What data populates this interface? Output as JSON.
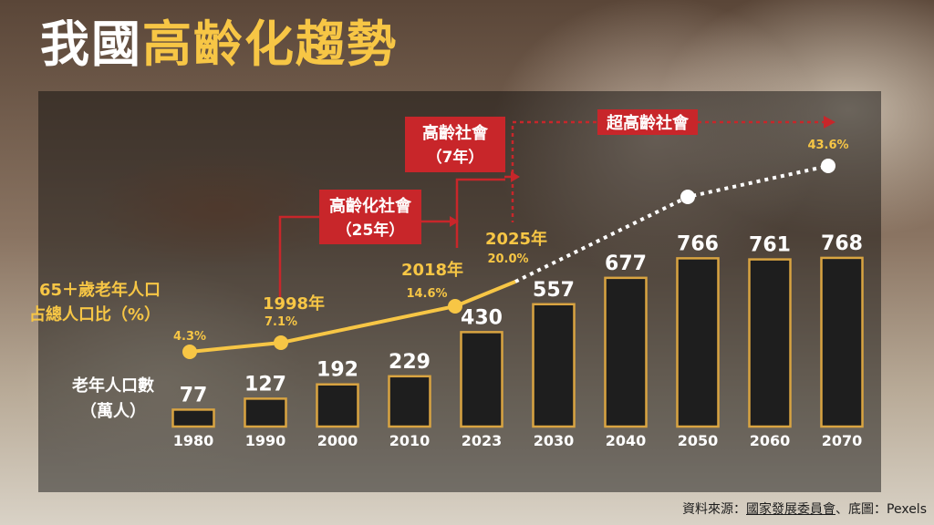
{
  "header": {
    "title_white": "我國",
    "title_yellow": "高齡化趨勢"
  },
  "stages": [
    {
      "line1": "高齡化社會",
      "line2": "（25年）"
    },
    {
      "line1": "高齡社會",
      "line2": "（7年）"
    },
    {
      "line1": "超高齡社會"
    }
  ],
  "legend": {
    "ratio_label_line1": "65＋歲老年人口",
    "ratio_label_line2": "占總人口比（%）",
    "count_label_line1": "老年人口數",
    "count_label_line2": "（萬人）"
  },
  "credit": {
    "prefix": "資料來源：",
    "source": "國家發展委員會",
    "suffix": "、底圖：Pexels"
  },
  "colors": {
    "accent_yellow": "#f7c645",
    "stage_red": "#c8262a",
    "bar_fill": "#1e1e1e",
    "bar_stroke": "#d9a441"
  },
  "chart_data": {
    "type": "bar",
    "categories": [
      "1980",
      "1990",
      "2000",
      "2010",
      "2023",
      "2030",
      "2040",
      "2050",
      "2060",
      "2070"
    ],
    "series": [
      {
        "values": [
          77,
          127,
          192,
          229,
          430,
          557,
          677,
          766,
          761,
          768
        ]
      }
    ],
    "ratio_points": [
      {
        "year": "",
        "value": "4.3%"
      },
      {
        "year": "1998年",
        "value": "7.1%"
      },
      {
        "year": "2018年",
        "value": "14.6%"
      },
      {
        "year": "2025年",
        "value": "20.0%"
      },
      {
        "year": "",
        "value": "43.6%"
      }
    ],
    "ylim": [
      0,
      800
    ]
  }
}
